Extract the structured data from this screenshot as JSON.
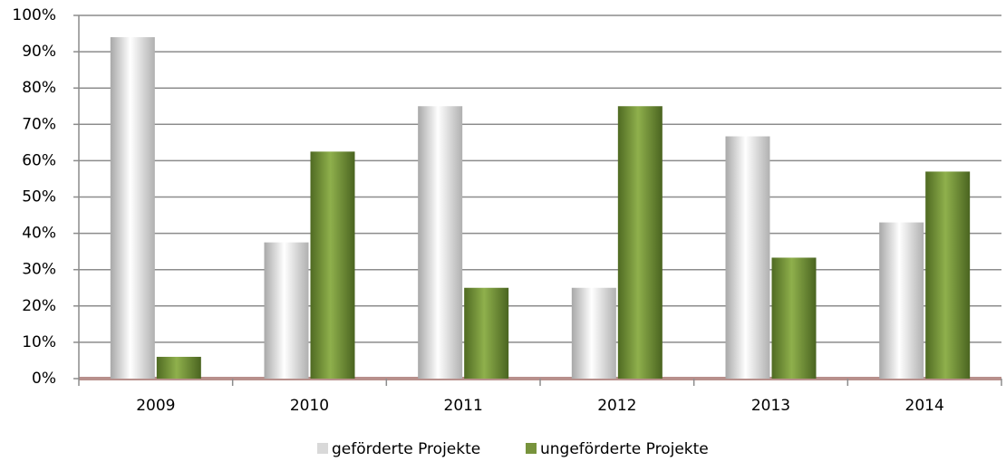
{
  "chart_data": {
    "type": "bar",
    "categories": [
      "2009",
      "2010",
      "2011",
      "2012",
      "2013",
      "2014"
    ],
    "series": [
      {
        "name": "geförderte Projekte",
        "color": "#d9d9d9",
        "values": [
          94,
          37.5,
          75,
          25,
          66.7,
          43
        ]
      },
      {
        "name": "ungeförderte Projekte",
        "color": "#77933c",
        "values": [
          6,
          62.5,
          25,
          75,
          33.3,
          57
        ]
      }
    ],
    "ylim": [
      0,
      100
    ],
    "yticks": [
      {
        "value": 0,
        "label": "0%"
      },
      {
        "value": 10,
        "label": "10%"
      },
      {
        "value": 20,
        "label": "20%"
      },
      {
        "value": 30,
        "label": "30%"
      },
      {
        "value": 40,
        "label": "40%"
      },
      {
        "value": 50,
        "label": "50%"
      },
      {
        "value": 60,
        "label": "60%"
      },
      {
        "value": 70,
        "label": "70%"
      },
      {
        "value": 80,
        "label": "80%"
      },
      {
        "value": 90,
        "label": "90%"
      },
      {
        "value": 100,
        "label": "100%"
      }
    ],
    "grid": true,
    "legend": "bottom"
  }
}
